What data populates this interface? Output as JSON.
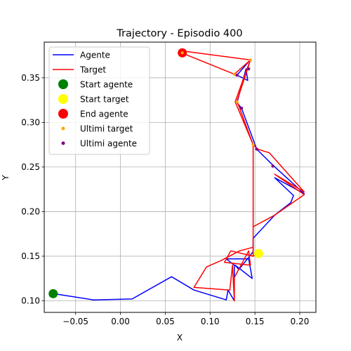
{
  "chart_data": {
    "type": "line",
    "title": "Trajectory - Episodio 400",
    "xlabel": "X",
    "ylabel": "Y",
    "xlim": [
      -0.085,
      0.218
    ],
    "ylim": [
      0.087,
      0.39
    ],
    "xticks": [
      -0.05,
      0.0,
      0.05,
      0.1,
      0.15,
      0.2
    ],
    "xtick_labels": [
      "−0.05",
      "0.00",
      "0.05",
      "0.10",
      "0.15",
      "0.20"
    ],
    "yticks": [
      0.1,
      0.15,
      0.2,
      0.25,
      0.3,
      0.35
    ],
    "ytick_labels": [
      "0.10",
      "0.15",
      "0.20",
      "0.25",
      "0.30",
      "0.35"
    ],
    "grid": true,
    "legend_position": "top-left",
    "series": [
      {
        "name": "Agente",
        "kind": "line",
        "color": "#0000ff",
        "points": [
          [
            -0.075,
            0.108
          ],
          [
            -0.03,
            0.101
          ],
          [
            0.013,
            0.102
          ],
          [
            0.057,
            0.127
          ],
          [
            0.082,
            0.112
          ],
          [
            0.118,
            0.101
          ],
          [
            0.12,
            0.112
          ],
          [
            0.127,
            0.1
          ],
          [
            0.127,
            0.14
          ],
          [
            0.118,
            0.147
          ],
          [
            0.143,
            0.147
          ],
          [
            0.147,
            0.125
          ],
          [
            0.128,
            0.14
          ],
          [
            0.132,
            0.135
          ],
          [
            0.148,
            0.155
          ],
          [
            0.148,
            0.17
          ],
          [
            0.172,
            0.196
          ],
          [
            0.19,
            0.21
          ],
          [
            0.193,
            0.218
          ],
          [
            0.172,
            0.238
          ],
          [
            0.205,
            0.22
          ],
          [
            0.17,
            0.252
          ],
          [
            0.152,
            0.27
          ],
          [
            0.135,
            0.316
          ],
          [
            0.13,
            0.322
          ],
          [
            0.14,
            0.36
          ],
          [
            0.142,
            0.347
          ],
          [
            0.13,
            0.353
          ],
          [
            0.143,
            0.368
          ]
        ]
      },
      {
        "name": "Target",
        "kind": "line",
        "color": "#ff0000",
        "points": [
          [
            0.154,
            0.153
          ],
          [
            0.148,
            0.15
          ],
          [
            0.148,
            0.183
          ],
          [
            0.172,
            0.196
          ],
          [
            0.205,
            0.219
          ],
          [
            0.172,
            0.242
          ],
          [
            0.205,
            0.222
          ],
          [
            0.166,
            0.266
          ],
          [
            0.153,
            0.27
          ],
          [
            0.148,
            0.275
          ],
          [
            0.13,
            0.324
          ],
          [
            0.145,
            0.37
          ],
          [
            0.127,
            0.354
          ],
          [
            0.068,
            0.378
          ],
          [
            0.07,
            0.38
          ],
          [
            0.145,
            0.37
          ],
          [
            0.14,
            0.357
          ],
          [
            0.128,
            0.323
          ],
          [
            0.148,
            0.275
          ],
          [
            0.148,
            0.16
          ],
          [
            0.133,
            0.156
          ],
          [
            0.112,
            0.145
          ],
          [
            0.096,
            0.138
          ],
          [
            0.082,
            0.115
          ],
          [
            0.122,
            0.112
          ],
          [
            0.125,
            0.14
          ],
          [
            0.127,
            0.1
          ],
          [
            0.127,
            0.126
          ],
          [
            0.143,
            0.156
          ],
          [
            0.145,
            0.14
          ],
          [
            0.116,
            0.143
          ],
          [
            0.123,
            0.156
          ],
          [
            0.148,
            0.15
          ]
        ]
      },
      {
        "name": "Start agente",
        "kind": "marker",
        "color": "#008000",
        "size": 12,
        "points": [
          [
            -0.075,
            0.108
          ]
        ]
      },
      {
        "name": "Start target",
        "kind": "marker",
        "color": "#ffff00",
        "size": 12,
        "points": [
          [
            0.154,
            0.153
          ]
        ]
      },
      {
        "name": "End agente",
        "kind": "marker",
        "color": "#ff0000",
        "size": 12,
        "points": [
          [
            0.069,
            0.378
          ]
        ]
      },
      {
        "name": "Ultimi target",
        "kind": "scatter",
        "color": "#ffa500",
        "size": 5,
        "points": [
          [
            0.069,
            0.378
          ],
          [
            0.127,
            0.354
          ],
          [
            0.145,
            0.37
          ],
          [
            0.13,
            0.323
          ],
          [
            0.148,
            0.275
          ]
        ]
      },
      {
        "name": "Ultimi agente",
        "kind": "scatter",
        "color": "#800080",
        "size": 5,
        "points": [
          [
            0.13,
            0.353
          ],
          [
            0.143,
            0.36
          ],
          [
            0.135,
            0.316
          ],
          [
            0.152,
            0.27
          ],
          [
            0.17,
            0.251
          ]
        ]
      }
    ]
  }
}
